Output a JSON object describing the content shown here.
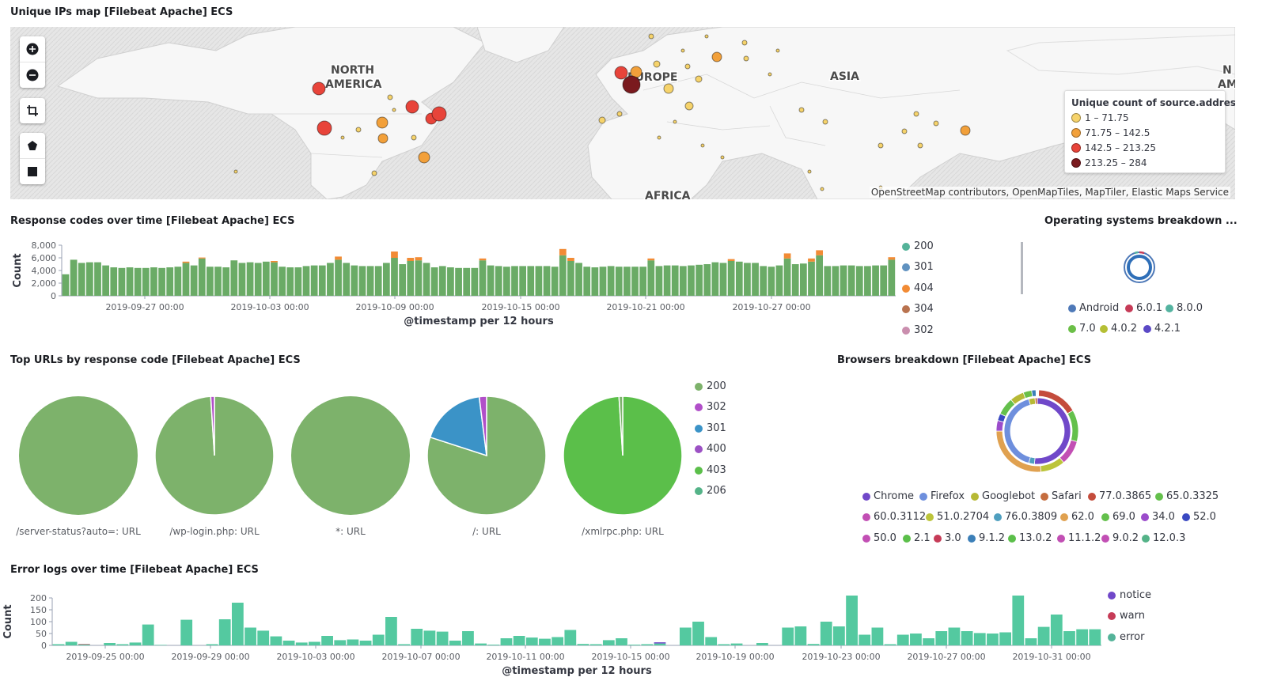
{
  "map_panel": {
    "title": "Unique IPs map [Filebeat Apache] ECS",
    "labels": [
      "NORTH",
      "AMERICA",
      "EUROPE",
      "ASIA",
      "AFRICA",
      "N",
      "AM"
    ],
    "legend_title": "Unique count of source.address",
    "legend": [
      {
        "label": "1 – 71.75",
        "color": "#f6d36b"
      },
      {
        "label": "71.75 – 142.5",
        "color": "#f2a03a"
      },
      {
        "label": "142.5 – 213.25",
        "color": "#e8443a"
      },
      {
        "label": "213.25 – 284",
        "color": "#7a1a1e"
      }
    ],
    "attribution": "OpenStreetMap contributors, OpenMapTiles, MapTiler, Elastic Maps Service",
    "tools": [
      "zoom-in-icon",
      "zoom-out-icon",
      "crop-icon",
      "polygon-icon",
      "square-icon"
    ]
  },
  "response_panel": {
    "title": "Response codes over time [Filebeat Apache] ECS",
    "legend": [
      {
        "label": "200",
        "color": "#54b399"
      },
      {
        "label": "301",
        "color": "#6092c0"
      },
      {
        "label": "404",
        "color": "#f28b35"
      },
      {
        "label": "304",
        "color": "#b9734f"
      },
      {
        "label": "302",
        "color": "#ca8eae"
      }
    ]
  },
  "os_panel": {
    "title": "Operating systems breakdown ...",
    "legend": [
      {
        "label": "Android",
        "color": "#4e79b8"
      },
      {
        "label": "6.0.1",
        "color": "#c63b57"
      },
      {
        "label": "8.0.0",
        "color": "#54b3a0"
      },
      {
        "label": "7.0",
        "color": "#6bbf47"
      },
      {
        "label": "4.0.2",
        "color": "#b5bf35"
      },
      {
        "label": "4.2.1",
        "color": "#5b49c6"
      }
    ]
  },
  "urls_panel": {
    "title": "Top URLs by response code [Filebeat Apache] ECS",
    "legend": [
      {
        "label": "200",
        "color": "#7db26b"
      },
      {
        "label": "302",
        "color": "#b14fc9"
      },
      {
        "label": "301",
        "color": "#3b93c7"
      },
      {
        "label": "400",
        "color": "#9c51c4"
      },
      {
        "label": "403",
        "color": "#5bbf4a"
      },
      {
        "label": "206",
        "color": "#54b388"
      }
    ],
    "pie_labels": [
      "/server-status?auto=: URL",
      "/wp-login.php: URL",
      "*: URL",
      "/: URL",
      "/xmlrpc.php: URL"
    ]
  },
  "browsers_panel": {
    "title": "Browsers breakdown [Filebeat Apache] ECS",
    "legend": [
      {
        "label": "Chrome",
        "color": "#7048c9"
      },
      {
        "label": "Firefox",
        "color": "#6e8fdd"
      },
      {
        "label": "Googlebot",
        "color": "#b7b935"
      },
      {
        "label": "Safari",
        "color": "#c56d3f"
      },
      {
        "label": "77.0.3865",
        "color": "#c44c3c"
      },
      {
        "label": "65.0.3325",
        "color": "#64c04c"
      },
      {
        "label": "60.0.3112",
        "color": "#c24fb4"
      },
      {
        "label": "51.0.2704",
        "color": "#bcc43a"
      },
      {
        "label": "76.0.3809",
        "color": "#4f9fbf"
      },
      {
        "label": "62.0",
        "color": "#e0a150"
      },
      {
        "label": "69.0",
        "color": "#64c04c"
      },
      {
        "label": "34.0",
        "color": "#9b4ccb"
      },
      {
        "label": "52.0",
        "color": "#3a49c2"
      },
      {
        "label": "50.0",
        "color": "#c24fb4"
      },
      {
        "label": "2.1",
        "color": "#5bbf4a"
      },
      {
        "label": "3.0",
        "color": "#c63b57"
      },
      {
        "label": "9.1.2",
        "color": "#3b7fb8"
      },
      {
        "label": "13.0.2",
        "color": "#5bbf4a"
      },
      {
        "label": "11.1.2",
        "color": "#c24fb4"
      },
      {
        "label": "9.0.2",
        "color": "#c24fb4"
      },
      {
        "label": "12.0.3",
        "color": "#54b388"
      }
    ]
  },
  "error_panel": {
    "title": "Error logs over time [Filebeat Apache] ECS",
    "legend": [
      {
        "label": "notice",
        "color": "#7048c9"
      },
      {
        "label": "warn",
        "color": "#c63b57"
      },
      {
        "label": "error",
        "color": "#54b399"
      }
    ]
  },
  "chart_data": [
    {
      "type": "bar",
      "stacked": true,
      "xlabel": "@timestamp per 12 hours",
      "ylabel": "Count",
      "ylim": [
        0,
        8000
      ],
      "yticks": [
        "0",
        "2,000",
        "4,000",
        "6,000",
        "8,000"
      ],
      "xticks": [
        "2019-09-27 00:00",
        "2019-10-03 00:00",
        "2019-10-09 00:00",
        "2019-10-15 00:00",
        "2019-10-21 00:00",
        "2019-10-27 00:00"
      ],
      "series": [
        {
          "name": "200",
          "color": "#6aab66",
          "values": [
            3400,
            5700,
            5200,
            5300,
            5300,
            4800,
            4500,
            4400,
            4500,
            4400,
            4400,
            4500,
            4400,
            4500,
            4600,
            5200,
            4800,
            5900,
            4600,
            4600,
            4500,
            5600,
            5200,
            5300,
            5200,
            5400,
            5300,
            4600,
            4500,
            4500,
            4700,
            4800,
            4800,
            5200,
            5700,
            5200,
            4800,
            4700,
            4700,
            4700,
            5200,
            6000,
            5000,
            5500,
            5600,
            5200,
            4500,
            4700,
            4500,
            4400,
            4400,
            4400,
            5600,
            4800,
            4700,
            4600,
            4700,
            4700,
            4700,
            4700,
            4700,
            4600,
            6400,
            5500,
            5200,
            4600,
            4500,
            4600,
            4700,
            4600,
            4600,
            4600,
            4600,
            5600,
            4700,
            4800,
            4800,
            4700,
            4800,
            4900,
            5000,
            5300,
            5200,
            5500,
            5400,
            5200,
            5200,
            4700,
            4600,
            4800,
            5900,
            5000,
            5100,
            5400,
            6400,
            4700,
            4700,
            4800,
            4800,
            4700,
            4700,
            4800,
            4800,
            5700
          ]
        },
        {
          "name": "404",
          "color": "#f28b35",
          "values": [
            0,
            0,
            0,
            0,
            0,
            0,
            0,
            0,
            0,
            0,
            0,
            0,
            0,
            0,
            0,
            200,
            0,
            150,
            0,
            0,
            0,
            0,
            0,
            0,
            0,
            0,
            200,
            0,
            0,
            0,
            0,
            0,
            0,
            0,
            500,
            0,
            0,
            0,
            0,
            0,
            0,
            1000,
            0,
            500,
            500,
            0,
            0,
            0,
            0,
            0,
            0,
            0,
            300,
            0,
            0,
            0,
            0,
            0,
            0,
            0,
            0,
            0,
            1000,
            500,
            0,
            0,
            0,
            0,
            0,
            0,
            0,
            0,
            0,
            300,
            0,
            0,
            0,
            0,
            0,
            0,
            0,
            0,
            0,
            300,
            0,
            0,
            0,
            0,
            0,
            0,
            800,
            0,
            0,
            500,
            800,
            0,
            0,
            0,
            0,
            0,
            0,
            0,
            0,
            400
          ]
        }
      ]
    },
    {
      "type": "pie",
      "categories": [
        "/server-status?auto=: URL",
        "/wp-login.php: URL",
        "*: URL",
        "/: URL",
        "/xmlrpc.php: URL"
      ],
      "pies": [
        [
          {
            "label": "200",
            "value": 100
          }
        ],
        [
          {
            "label": "200",
            "value": 99
          },
          {
            "label": "302",
            "value": 1
          }
        ],
        [
          {
            "label": "200",
            "value": 100
          }
        ],
        [
          {
            "label": "200",
            "value": 80
          },
          {
            "label": "301",
            "value": 18
          },
          {
            "label": "302",
            "value": 2
          }
        ],
        [
          {
            "label": "403",
            "value": 99
          },
          {
            "label": "200",
            "value": 1
          }
        ]
      ]
    },
    {
      "type": "bar",
      "stacked": true,
      "xlabel": "@timestamp per 12 hours",
      "ylabel": "Count",
      "ylim": [
        0,
        200
      ],
      "yticks": [
        "0",
        "50",
        "100",
        "150",
        "200"
      ],
      "xticks": [
        "2019-09-25 00:00",
        "2019-09-29 00:00",
        "2019-10-03 00:00",
        "2019-10-07 00:00",
        "2019-10-11 00:00",
        "2019-10-15 00:00",
        "2019-10-19 00:00",
        "2019-10-23 00:00",
        "2019-10-27 00:00",
        "2019-10-31 00:00"
      ],
      "series": [
        {
          "name": "error",
          "color": "#54c9a0",
          "values": [
            5,
            15,
            4,
            0,
            10,
            5,
            12,
            88,
            2,
            0,
            108,
            0,
            5,
            110,
            180,
            75,
            62,
            38,
            20,
            12,
            15,
            40,
            22,
            25,
            20,
            45,
            120,
            5,
            70,
            62,
            58,
            20,
            60,
            8,
            3,
            30,
            40,
            33,
            28,
            35,
            65,
            6,
            5,
            22,
            30,
            3,
            5,
            8,
            0,
            75,
            100,
            35,
            5,
            8,
            0,
            10,
            0,
            75,
            80,
            6,
            100,
            80,
            210,
            45,
            75,
            5,
            45,
            50,
            30,
            60,
            75,
            60,
            52,
            50,
            55,
            210,
            30,
            78,
            130,
            60,
            68,
            68
          ]
        },
        {
          "name": "notice",
          "color": "#7048c9",
          "values": [
            0,
            0,
            0,
            0,
            0,
            0,
            0,
            0,
            0,
            0,
            0,
            0,
            0,
            0,
            0,
            0,
            0,
            0,
            0,
            0,
            0,
            0,
            0,
            0,
            0,
            0,
            0,
            0,
            0,
            0,
            0,
            0,
            0,
            0,
            0,
            0,
            0,
            0,
            0,
            0,
            0,
            0,
            0,
            0,
            0,
            0,
            0,
            5,
            0,
            0,
            0,
            0,
            0,
            0,
            0,
            0,
            0,
            0,
            0,
            0,
            0,
            0,
            0,
            0,
            0,
            0,
            0,
            0,
            0,
            0,
            0,
            0,
            0,
            0,
            0,
            0,
            0,
            0,
            0,
            0,
            0,
            0
          ]
        },
        {
          "name": "warn",
          "color": "#c63b57",
          "values": [
            0,
            0,
            2,
            0,
            0,
            0,
            0,
            0,
            0,
            0,
            0,
            0,
            0,
            0,
            0,
            0,
            0,
            0,
            0,
            0,
            0,
            0,
            0,
            0,
            0,
            0,
            0,
            0,
            0,
            0,
            0,
            0,
            0,
            0,
            0,
            0,
            0,
            0,
            0,
            0,
            0,
            0,
            0,
            0,
            0,
            0,
            0,
            0,
            0,
            0,
            0,
            0,
            0,
            0,
            0,
            0,
            0,
            0,
            0,
            0,
            0,
            0,
            0,
            0,
            0,
            0,
            0,
            0,
            0,
            0,
            0,
            0,
            0,
            0,
            0,
            0,
            0,
            0,
            0,
            0,
            0,
            0
          ]
        }
      ]
    }
  ]
}
